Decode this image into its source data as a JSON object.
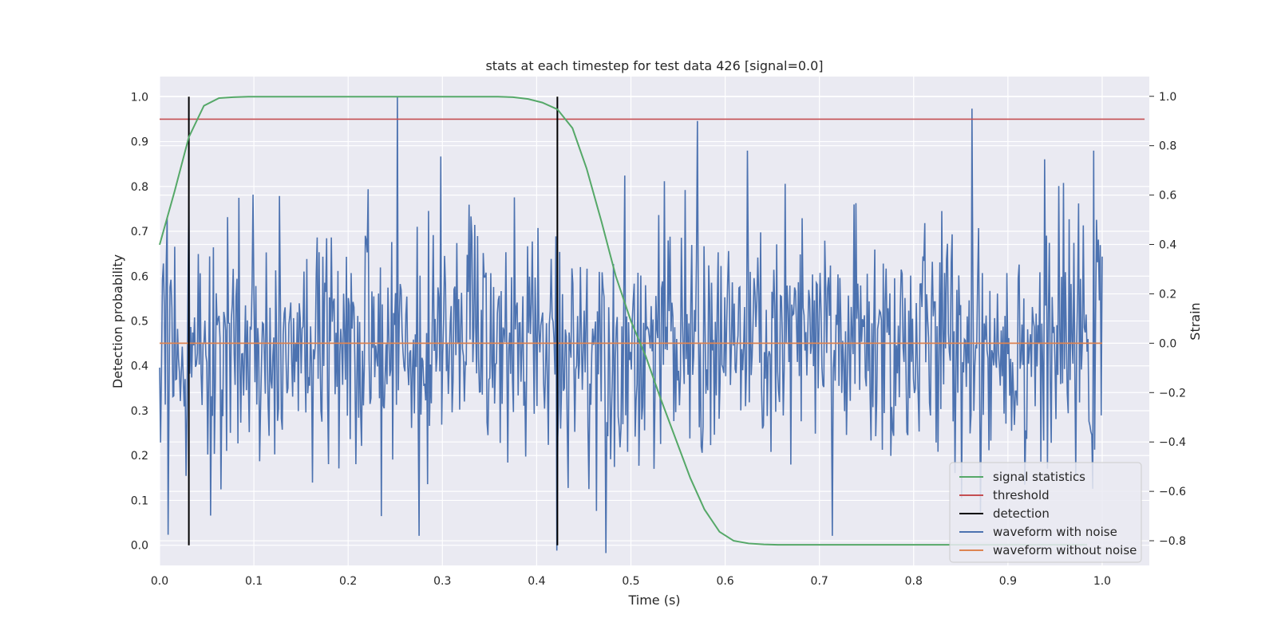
{
  "chart_data": {
    "type": "line",
    "title": "stats at each timestep for test data 426 [signal=0.0]",
    "xlabel": "Time (s)",
    "ylabel_left": "Detection probability",
    "ylabel_right": "Strain",
    "xlim": [
      0.0,
      1.05
    ],
    "ylim_left": [
      -0.045,
      1.045
    ],
    "ylim_right": [
      -0.9,
      1.08
    ],
    "x_ticks": [
      0.0,
      0.1,
      0.2,
      0.3,
      0.4,
      0.5,
      0.6,
      0.7,
      0.8,
      0.9,
      1.0
    ],
    "x_tick_labels": [
      "0.0",
      "0.1",
      "0.2",
      "0.3",
      "0.4",
      "0.5",
      "0.6",
      "0.7",
      "0.8",
      "0.9",
      "1.0"
    ],
    "y_left_ticks": [
      0.0,
      0.1,
      0.2,
      0.3,
      0.4,
      0.5,
      0.6,
      0.7,
      0.8,
      0.9,
      1.0
    ],
    "y_left_tick_labels": [
      "0.0",
      "0.1",
      "0.2",
      "0.3",
      "0.4",
      "0.5",
      "0.6",
      "0.7",
      "0.8",
      "0.9",
      "1.0"
    ],
    "y_right_ticks": [
      -0.8,
      -0.6,
      -0.4,
      -0.2,
      0.0,
      0.2,
      0.4,
      0.6,
      0.8,
      1.0
    ],
    "y_right_tick_labels": [
      "−0.8",
      "−0.6",
      "−0.4",
      "−0.2",
      "0.0",
      "0.2",
      "0.4",
      "0.6",
      "0.8",
      "1.0"
    ],
    "grid": true,
    "legend_position": "lower-right",
    "series": [
      {
        "name": "signal statistics",
        "axis": "left",
        "color": "#55a868",
        "x": [
          0.0,
          0.016,
          0.031,
          0.047,
          0.063,
          0.078,
          0.094,
          0.109,
          0.125,
          0.141,
          0.156,
          0.172,
          0.188,
          0.203,
          0.219,
          0.234,
          0.25,
          0.266,
          0.281,
          0.297,
          0.313,
          0.328,
          0.344,
          0.359,
          0.375,
          0.391,
          0.406,
          0.422,
          0.438,
          0.453,
          0.469,
          0.484,
          0.5,
          0.516,
          0.531,
          0.547,
          0.563,
          0.578,
          0.594,
          0.609,
          0.625,
          0.641,
          0.656,
          0.672,
          0.688,
          0.703,
          0.719,
          0.734,
          0.75,
          0.766,
          0.781,
          0.797,
          0.813,
          0.828,
          0.844,
          0.859,
          0.875,
          0.891,
          0.906,
          0.922,
          0.938,
          0.953,
          0.969,
          0.984
        ],
        "y": [
          0.67,
          0.79,
          0.91,
          0.98,
          0.997,
          0.999,
          1.0,
          1.0,
          1.0,
          1.0,
          1.0,
          1.0,
          1.0,
          1.0,
          1.0,
          1.0,
          1.0,
          1.0,
          1.0,
          1.0,
          1.0,
          1.0,
          1.0,
          1.0,
          0.999,
          0.995,
          0.987,
          0.972,
          0.93,
          0.84,
          0.72,
          0.6,
          0.5,
          0.42,
          0.33,
          0.24,
          0.15,
          0.08,
          0.03,
          0.01,
          0.004,
          0.002,
          0.001,
          0.001,
          0.001,
          0.001,
          0.001,
          0.001,
          0.001,
          0.001,
          0.001,
          0.001,
          0.001,
          0.001,
          0.001,
          0.001,
          0.001,
          0.001,
          0.001,
          0.001,
          0.001,
          0.001,
          0.001,
          0.001
        ]
      },
      {
        "name": "threshold",
        "axis": "left",
        "color": "#c44e52",
        "x": [
          0.0,
          1.045
        ],
        "y": [
          0.95,
          0.95
        ]
      },
      {
        "name": "detection",
        "axis": "left",
        "color": "#000000",
        "x": [
          0.031,
          0.422
        ],
        "y_range": [
          0.0,
          1.0
        ]
      },
      {
        "name": "waveform with noise",
        "axis": "right",
        "color": "#4c72b0",
        "x_range": [
          0.0,
          1.0
        ],
        "n_points": 1000,
        "peaks": [
          {
            "x": 0.252,
            "y": 1.0
          },
          {
            "x": 0.571,
            "y": 0.9
          },
          {
            "x": 0.862,
            "y": 0.95
          },
          {
            "x": 0.031,
            "y": 0.6
          },
          {
            "x": 0.473,
            "y": -0.85
          },
          {
            "x": 0.421,
            "y": -0.84
          },
          {
            "x": 0.714,
            "y": -0.78
          },
          {
            "x": 0.235,
            "y": -0.7
          }
        ],
        "typical_range": [
          -0.5,
          0.5
        ]
      },
      {
        "name": "waveform without noise",
        "axis": "right",
        "color": "#dd8452",
        "x": [
          0.0,
          1.0
        ],
        "y": [
          0.0,
          0.0
        ]
      }
    ]
  },
  "legend": {
    "items": [
      {
        "label": "signal statistics",
        "color": "#55a868"
      },
      {
        "label": "threshold",
        "color": "#c44e52"
      },
      {
        "label": "detection",
        "color": "#000000"
      },
      {
        "label": "waveform with noise",
        "color": "#4c72b0"
      },
      {
        "label": "waveform without noise",
        "color": "#dd8452"
      }
    ]
  },
  "colors": {
    "plot_background": "#eaeaf2",
    "grid": "#ffffff",
    "text": "#262626"
  }
}
